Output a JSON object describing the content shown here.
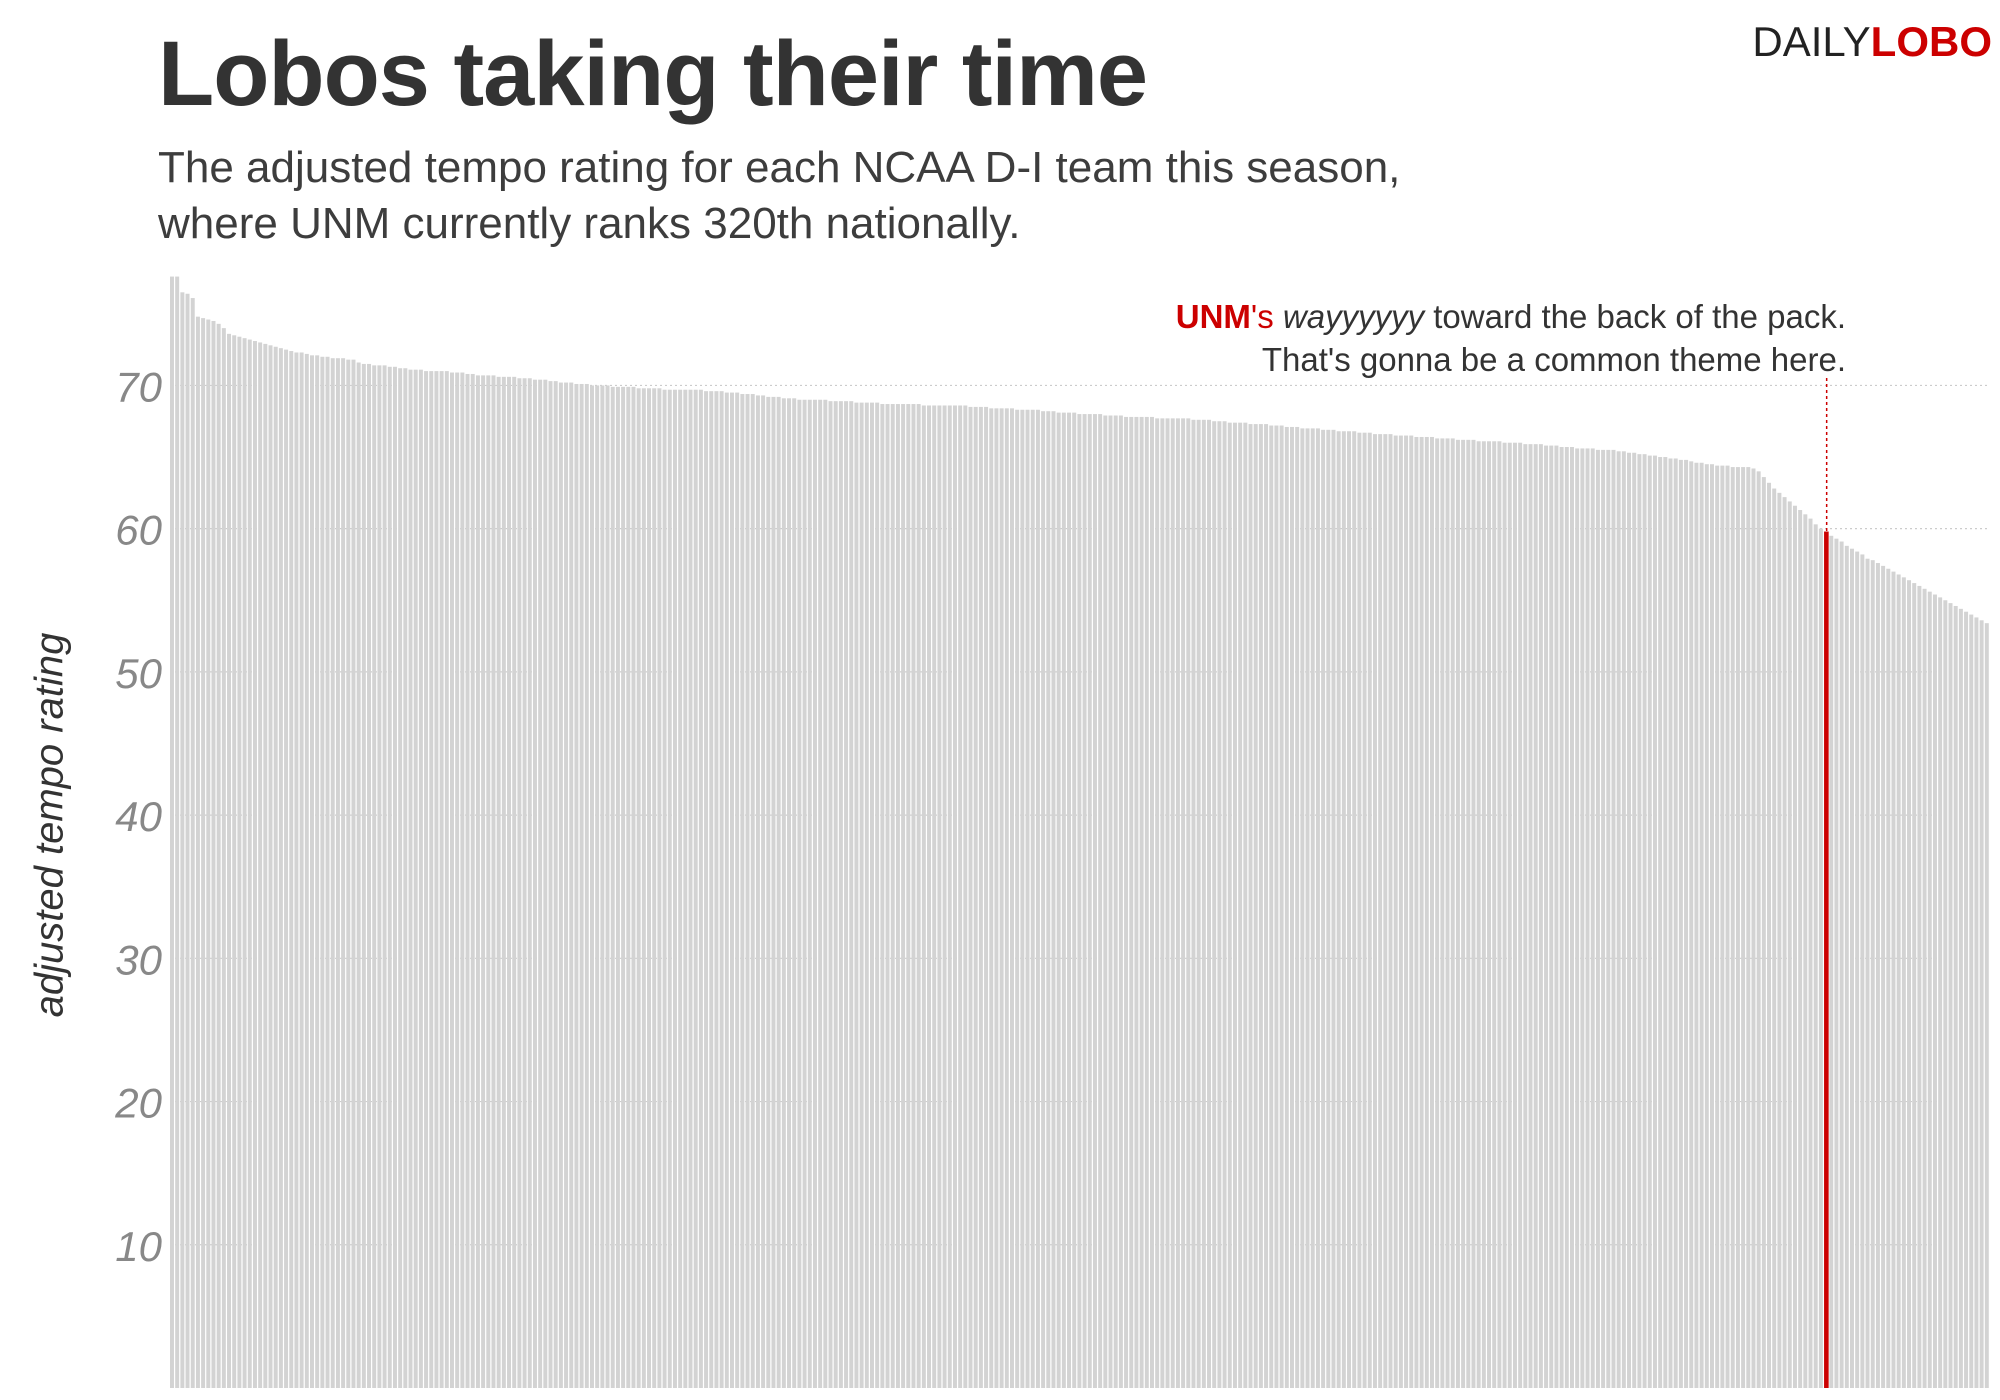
{
  "header": {
    "title": "Lobos taking their time",
    "subtitle_line1": "The adjusted tempo rating for each NCAA D-I team this season,",
    "subtitle_line2": "where UNM currently ranks 320th nationally."
  },
  "logo": {
    "part1": "DAILY",
    "part2": "LOBO"
  },
  "annotation": {
    "team": "UNM",
    "possessive": "'s",
    "emphasis": "wayyyyyy",
    "rest_line1": " toward the back of the pack.",
    "line2": "That's gonna be a common theme here."
  },
  "colors": {
    "bar": "#d3d3d3",
    "highlight": "#cc0000",
    "gridline": "#cccccc",
    "tick": "#888888"
  },
  "chart_data": {
    "type": "bar",
    "ylabel": "adjusted tempo rating",
    "ylim": [
      0,
      77.5
    ],
    "yticks": [
      10,
      20,
      30,
      40,
      50,
      60,
      70
    ],
    "grid": "dotted horizontal",
    "team_count": 351,
    "highlight_rank": 320,
    "highlight_team": "UNM",
    "values": [
      77.6,
      77.6,
      76.5,
      76.4,
      76.1,
      74.8,
      74.7,
      74.6,
      74.5,
      74.3,
      74.0,
      73.6,
      73.5,
      73.4,
      73.3,
      73.2,
      73.1,
      73.0,
      72.9,
      72.8,
      72.7,
      72.6,
      72.5,
      72.4,
      72.3,
      72.3,
      72.2,
      72.1,
      72.1,
      72.0,
      72.0,
      71.9,
      71.9,
      71.9,
      71.8,
      71.8,
      71.6,
      71.5,
      71.5,
      71.4,
      71.4,
      71.4,
      71.3,
      71.3,
      71.2,
      71.2,
      71.1,
      71.1,
      71.1,
      71.0,
      71.0,
      71.0,
      71.0,
      71.0,
      70.9,
      70.9,
      70.9,
      70.8,
      70.8,
      70.7,
      70.7,
      70.7,
      70.7,
      70.6,
      70.6,
      70.6,
      70.6,
      70.5,
      70.5,
      70.5,
      70.4,
      70.4,
      70.4,
      70.3,
      70.3,
      70.2,
      70.2,
      70.2,
      70.1,
      70.1,
      70.1,
      70.0,
      70.0,
      70.0,
      70.0,
      69.9,
      69.9,
      69.9,
      69.9,
      69.9,
      69.8,
      69.8,
      69.8,
      69.8,
      69.8,
      69.7,
      69.7,
      69.7,
      69.7,
      69.7,
      69.7,
      69.7,
      69.7,
      69.6,
      69.6,
      69.6,
      69.6,
      69.5,
      69.5,
      69.5,
      69.4,
      69.4,
      69.4,
      69.3,
      69.3,
      69.2,
      69.2,
      69.2,
      69.1,
      69.1,
      69.1,
      69.0,
      69.0,
      69.0,
      69.0,
      69.0,
      69.0,
      68.9,
      68.9,
      68.9,
      68.9,
      68.9,
      68.8,
      68.8,
      68.8,
      68.8,
      68.8,
      68.7,
      68.7,
      68.7,
      68.7,
      68.7,
      68.7,
      68.7,
      68.7,
      68.6,
      68.6,
      68.6,
      68.6,
      68.6,
      68.6,
      68.6,
      68.6,
      68.6,
      68.5,
      68.5,
      68.5,
      68.5,
      68.4,
      68.4,
      68.4,
      68.4,
      68.4,
      68.3,
      68.3,
      68.3,
      68.3,
      68.3,
      68.2,
      68.2,
      68.2,
      68.1,
      68.1,
      68.1,
      68.1,
      68.0,
      68.0,
      68.0,
      68.0,
      68.0,
      67.9,
      67.9,
      67.9,
      67.9,
      67.8,
      67.8,
      67.8,
      67.8,
      67.8,
      67.8,
      67.7,
      67.7,
      67.7,
      67.7,
      67.7,
      67.7,
      67.7,
      67.6,
      67.6,
      67.6,
      67.6,
      67.5,
      67.5,
      67.5,
      67.4,
      67.4,
      67.4,
      67.4,
      67.3,
      67.3,
      67.3,
      67.3,
      67.2,
      67.2,
      67.2,
      67.1,
      67.1,
      67.1,
      67.0,
      67.0,
      67.0,
      67.0,
      66.9,
      66.9,
      66.9,
      66.8,
      66.8,
      66.8,
      66.8,
      66.7,
      66.7,
      66.7,
      66.6,
      66.6,
      66.6,
      66.6,
      66.5,
      66.5,
      66.5,
      66.5,
      66.4,
      66.4,
      66.4,
      66.4,
      66.3,
      66.3,
      66.3,
      66.3,
      66.2,
      66.2,
      66.2,
      66.2,
      66.1,
      66.1,
      66.1,
      66.1,
      66.1,
      66.0,
      66.0,
      66.0,
      66.0,
      65.9,
      65.9,
      65.9,
      65.9,
      65.8,
      65.8,
      65.8,
      65.7,
      65.7,
      65.7,
      65.6,
      65.6,
      65.6,
      65.6,
      65.5,
      65.5,
      65.5,
      65.5,
      65.4,
      65.4,
      65.3,
      65.3,
      65.2,
      65.2,
      65.1,
      65.1,
      65.0,
      65.0,
      64.9,
      64.9,
      64.8,
      64.8,
      64.7,
      64.6,
      64.6,
      64.5,
      64.5,
      64.4,
      64.4,
      64.4,
      64.3,
      64.3,
      64.3,
      64.3,
      64.2,
      64.0,
      63.6,
      63.2,
      62.8,
      62.5,
      62.2,
      61.9,
      61.6,
      61.3,
      61.0,
      60.7,
      60.3,
      60.0,
      59.8,
      59.5,
      59.3,
      59.1,
      58.8,
      58.6,
      58.4,
      58.2,
      57.9,
      57.8,
      57.6,
      57.4,
      57.2,
      57.0,
      56.8,
      56.6,
      56.4,
      56.2,
      56.0,
      55.8,
      55.6,
      55.4,
      55.2,
      55.0,
      54.8,
      54.6,
      54.4,
      54.2,
      54.0,
      53.8,
      53.6,
      53.4
    ]
  }
}
